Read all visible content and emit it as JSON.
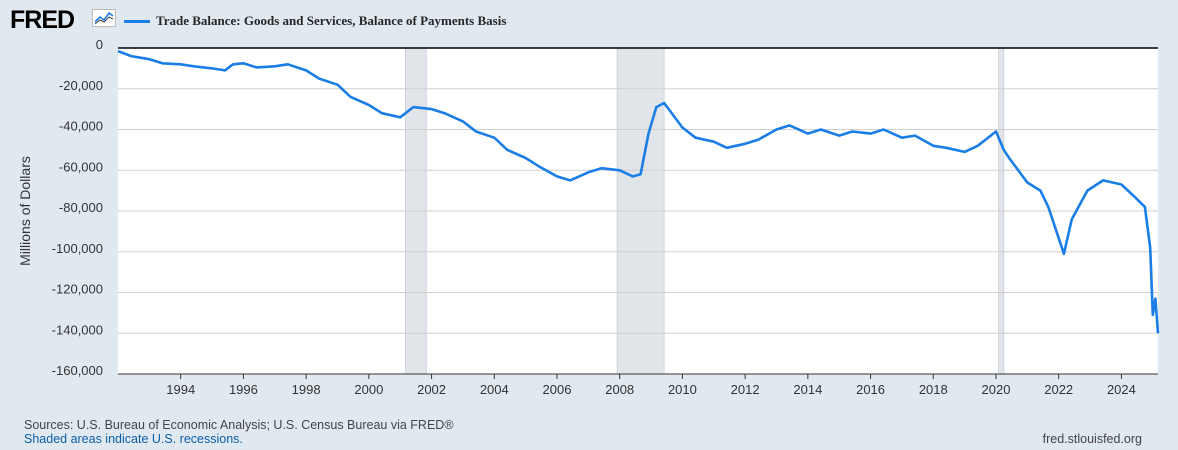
{
  "header": {
    "logo_text": "FRED",
    "logo_icon": "line-chart-icon",
    "legend_label": "Trade Balance: Goods and Services, Balance of Payments Basis"
  },
  "colors": {
    "series": "#1a7ee6",
    "plot_bg": "#ffffff",
    "page_bg": "#e1e9f0",
    "recession": "#e1e5ea",
    "grid": "#d0d0d0",
    "zero_line": "#000000"
  },
  "footer": {
    "sources": "Sources: U.S. Bureau of Economic Analysis; U.S. Census Bureau via FRED®",
    "recessions_note": "Shaded areas indicate U.S. recessions.",
    "url": "fred.stlouisfed.org"
  },
  "chart_data": {
    "type": "line",
    "title": "",
    "xlabel": "",
    "ylabel": "Millions of Dollars",
    "ylim": [
      -160000,
      0
    ],
    "xlim": [
      "1992-01",
      "2025-03"
    ],
    "y_ticks": [
      0,
      -20000,
      -40000,
      -60000,
      -80000,
      -100000,
      -120000,
      -140000,
      -160000
    ],
    "y_tick_labels": [
      "0",
      "-20,000",
      "-40,000",
      "-60,000",
      "-80,000",
      "-100,000",
      "-120,000",
      "-140,000",
      "-160,000"
    ],
    "x_ticks": [
      "1994-01",
      "1996-01",
      "1998-01",
      "2000-01",
      "2002-01",
      "2004-01",
      "2006-01",
      "2008-01",
      "2010-01",
      "2012-01",
      "2014-01",
      "2016-01",
      "2018-01",
      "2020-01",
      "2022-01",
      "2024-01"
    ],
    "x_tick_labels": [
      "1994",
      "1996",
      "1998",
      "2000",
      "2002",
      "2004",
      "2006",
      "2008",
      "2010",
      "2012",
      "2014",
      "2016",
      "2018",
      "2020",
      "2022",
      "2024"
    ],
    "grid": "horizontal",
    "legend_position": "top-left",
    "recessions": [
      {
        "start": "2001-03",
        "end": "2001-11"
      },
      {
        "start": "2007-12",
        "end": "2009-06"
      },
      {
        "start": "2020-02",
        "end": "2020-04"
      }
    ],
    "series": [
      {
        "name": "Trade Balance: Goods and Services, Balance of Payments Basis",
        "points": [
          [
            "1992-01",
            -1500
          ],
          [
            "1992-06",
            -4000
          ],
          [
            "1993-01",
            -5500
          ],
          [
            "1993-06",
            -7500
          ],
          [
            "1994-01",
            -8000
          ],
          [
            "1994-06",
            -9000
          ],
          [
            "1995-01",
            -10000
          ],
          [
            "1995-06",
            -11000
          ],
          [
            "1995-09",
            -8000
          ],
          [
            "1996-01",
            -7500
          ],
          [
            "1996-06",
            -9500
          ],
          [
            "1997-01",
            -9000
          ],
          [
            "1997-06",
            -8000
          ],
          [
            "1998-01",
            -11000
          ],
          [
            "1998-06",
            -15000
          ],
          [
            "1999-01",
            -18000
          ],
          [
            "1999-06",
            -24000
          ],
          [
            "2000-01",
            -28000
          ],
          [
            "2000-06",
            -32000
          ],
          [
            "2001-01",
            -34000
          ],
          [
            "2001-06",
            -29000
          ],
          [
            "2002-01",
            -30000
          ],
          [
            "2002-06",
            -32000
          ],
          [
            "2003-01",
            -36000
          ],
          [
            "2003-06",
            -41000
          ],
          [
            "2004-01",
            -44000
          ],
          [
            "2004-06",
            -50000
          ],
          [
            "2005-01",
            -54000
          ],
          [
            "2005-06",
            -58000
          ],
          [
            "2006-01",
            -63000
          ],
          [
            "2006-06",
            -65000
          ],
          [
            "2007-01",
            -61000
          ],
          [
            "2007-06",
            -59000
          ],
          [
            "2008-01",
            -60000
          ],
          [
            "2008-06",
            -63000
          ],
          [
            "2008-09",
            -62000
          ],
          [
            "2008-12",
            -42000
          ],
          [
            "2009-03",
            -29000
          ],
          [
            "2009-06",
            -27000
          ],
          [
            "2010-01",
            -39000
          ],
          [
            "2010-06",
            -44000
          ],
          [
            "2011-01",
            -46000
          ],
          [
            "2011-06",
            -49000
          ],
          [
            "2012-01",
            -47000
          ],
          [
            "2012-06",
            -45000
          ],
          [
            "2013-01",
            -40000
          ],
          [
            "2013-06",
            -38000
          ],
          [
            "2014-01",
            -42000
          ],
          [
            "2014-06",
            -40000
          ],
          [
            "2015-01",
            -43000
          ],
          [
            "2015-06",
            -41000
          ],
          [
            "2016-01",
            -42000
          ],
          [
            "2016-06",
            -40000
          ],
          [
            "2017-01",
            -44000
          ],
          [
            "2017-06",
            -43000
          ],
          [
            "2018-01",
            -48000
          ],
          [
            "2018-06",
            -49000
          ],
          [
            "2019-01",
            -51000
          ],
          [
            "2019-06",
            -48000
          ],
          [
            "2020-01",
            -41000
          ],
          [
            "2020-04",
            -50000
          ],
          [
            "2020-06",
            -54000
          ],
          [
            "2021-01",
            -66000
          ],
          [
            "2021-06",
            -70000
          ],
          [
            "2021-09",
            -78000
          ],
          [
            "2022-03",
            -101000
          ],
          [
            "2022-06",
            -84000
          ],
          [
            "2022-12",
            -70000
          ],
          [
            "2023-06",
            -65000
          ],
          [
            "2024-01",
            -67000
          ],
          [
            "2024-06",
            -73000
          ],
          [
            "2024-10",
            -78000
          ],
          [
            "2024-12",
            -98000
          ],
          [
            "2025-01",
            -131000
          ],
          [
            "2025-02",
            -123000
          ],
          [
            "2025-03",
            -140000
          ]
        ]
      }
    ]
  }
}
